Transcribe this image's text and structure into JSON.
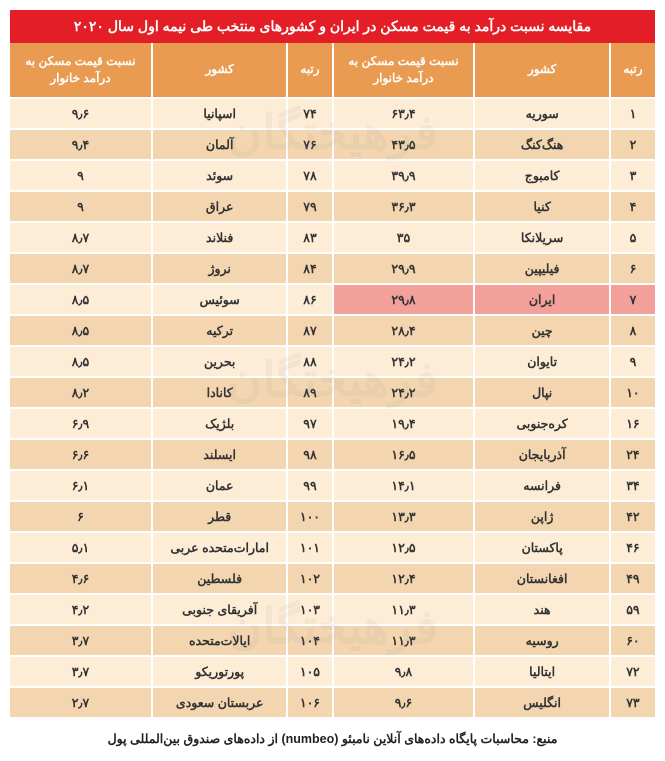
{
  "title": "مقایسه نسبت درآمد به قیمت مسکن در ایران و کشورهای منتخب طی نیمه اول سال ۲۰۲۰",
  "headers": {
    "rank": "رتبه",
    "country": "کشور",
    "ratio": "نسبت قیمت مسکن به درآمد خانوار"
  },
  "rows": [
    {
      "r1": "۱",
      "c1": "سوریه",
      "v1": "۶۳٫۴",
      "r2": "۷۴",
      "c2": "اسپانیا",
      "v2": "۹٫۶",
      "hl": false
    },
    {
      "r1": "۲",
      "c1": "هنگ‌کنگ",
      "v1": "۴۳٫۵",
      "r2": "۷۶",
      "c2": "آلمان",
      "v2": "۹٫۴",
      "hl": false
    },
    {
      "r1": "۳",
      "c1": "کامبوج",
      "v1": "۳۹٫۹",
      "r2": "۷۸",
      "c2": "سوئد",
      "v2": "۹",
      "hl": false
    },
    {
      "r1": "۴",
      "c1": "کنیا",
      "v1": "۳۶٫۳",
      "r2": "۷۹",
      "c2": "عراق",
      "v2": "۹",
      "hl": false
    },
    {
      "r1": "۵",
      "c1": "سریلانکا",
      "v1": "۳۵",
      "r2": "۸۳",
      "c2": "فنلاند",
      "v2": "۸٫۷",
      "hl": false
    },
    {
      "r1": "۶",
      "c1": "فیلیپین",
      "v1": "۲۹٫۹",
      "r2": "۸۴",
      "c2": "نروژ",
      "v2": "۸٫۷",
      "hl": false
    },
    {
      "r1": "۷",
      "c1": "ایران",
      "v1": "۲۹٫۸",
      "r2": "۸۶",
      "c2": "سوئیس",
      "v2": "۸٫۵",
      "hl": true
    },
    {
      "r1": "۸",
      "c1": "چین",
      "v1": "۲۸٫۴",
      "r2": "۸۷",
      "c2": "ترکیه",
      "v2": "۸٫۵",
      "hl": false
    },
    {
      "r1": "۹",
      "c1": "تایوان",
      "v1": "۲۴٫۲",
      "r2": "۸۸",
      "c2": "بحرین",
      "v2": "۸٫۵",
      "hl": false
    },
    {
      "r1": "۱۰",
      "c1": "نپال",
      "v1": "۲۴٫۲",
      "r2": "۸۹",
      "c2": "کانادا",
      "v2": "۸٫۲",
      "hl": false
    },
    {
      "r1": "۱۶",
      "c1": "کره‌جنوبی",
      "v1": "۱۹٫۴",
      "r2": "۹۷",
      "c2": "بلژیک",
      "v2": "۶٫۹",
      "hl": false
    },
    {
      "r1": "۲۴",
      "c1": "آذربایجان",
      "v1": "۱۶٫۵",
      "r2": "۹۸",
      "c2": "ایسلند",
      "v2": "۶٫۶",
      "hl": false
    },
    {
      "r1": "۳۴",
      "c1": "فرانسه",
      "v1": "۱۴٫۱",
      "r2": "۹۹",
      "c2": "عمان",
      "v2": "۶٫۱",
      "hl": false
    },
    {
      "r1": "۴۲",
      "c1": "ژاپن",
      "v1": "۱۳٫۳",
      "r2": "۱۰۰",
      "c2": "قطر",
      "v2": "۶",
      "hl": false
    },
    {
      "r1": "۴۶",
      "c1": "پاکستان",
      "v1": "۱۲٫۵",
      "r2": "۱۰۱",
      "c2": "امارات‌متحده عربی",
      "v2": "۵٫۱",
      "hl": false
    },
    {
      "r1": "۴۹",
      "c1": "افغانستان",
      "v1": "۱۲٫۴",
      "r2": "۱۰۲",
      "c2": "فلسطین",
      "v2": "۴٫۶",
      "hl": false
    },
    {
      "r1": "۵۹",
      "c1": "هند",
      "v1": "۱۱٫۳",
      "r2": "۱۰۳",
      "c2": "آفریقای جنوبی",
      "v2": "۴٫۲",
      "hl": false
    },
    {
      "r1": "۶۰",
      "c1": "روسیه",
      "v1": "۱۱٫۳",
      "r2": "۱۰۴",
      "c2": "ایالات‌متحده",
      "v2": "۳٫۷",
      "hl": false
    },
    {
      "r1": "۷۲",
      "c1": "ایتالیا",
      "v1": "۹٫۸",
      "r2": "۱۰۵",
      "c2": "پورتوریکو",
      "v2": "۳٫۷",
      "hl": false
    },
    {
      "r1": "۷۳",
      "c1": "انگلیس",
      "v1": "۹٫۶",
      "r2": "۱۰۶",
      "c2": "عربستان سعودی",
      "v2": "۲٫۷",
      "hl": false
    }
  ],
  "footer": "منبع: محاسبات پایگاه داده‌های آنلاین نامبئو (numbeo) از داده‌های صندوق بین‌المللی پول",
  "watermark": "فرهیختگان"
}
